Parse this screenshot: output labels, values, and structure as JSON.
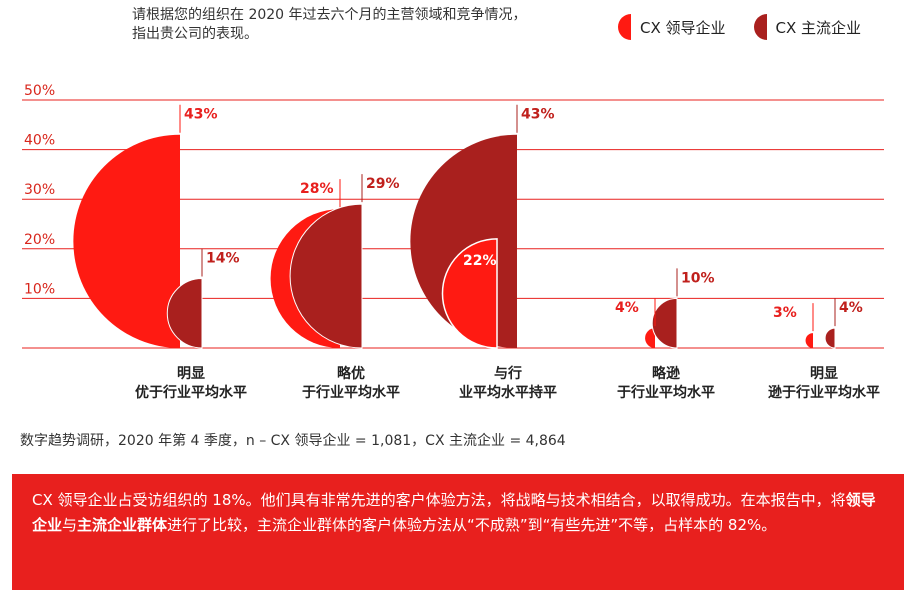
{
  "prompt": {
    "line1": "请根据您的组织在 2020 年过去六个月的主营领域和竞争情况，",
    "line2": "指出贵公司的表现。"
  },
  "colors": {
    "leader": "#ff1a12",
    "mainstream": "#a9201e",
    "grid": "#e8201e",
    "tick": "#d8261c"
  },
  "chart_data": {
    "type": "bar",
    "ylim": [
      0,
      50
    ],
    "yticks": [
      "50%",
      "40%",
      "30%",
      "20%",
      "10%"
    ],
    "ytick_values": [
      50,
      40,
      30,
      20,
      10
    ],
    "grid": true,
    "legend_position": "top-right",
    "categories": [
      [
        "明显",
        "优于行业平均水平"
      ],
      [
        "略优",
        "于行业平均水平"
      ],
      [
        "与行",
        "业平均水平持平"
      ],
      [
        "略逊",
        "于行业平均水平"
      ],
      [
        "明显",
        "逊于行业平均水平"
      ]
    ],
    "series": [
      {
        "name": "CX 领导企业",
        "values": [
          43,
          28,
          22,
          4,
          3
        ],
        "labels": [
          "43%",
          "28%",
          "22%",
          "4%",
          "3%"
        ]
      },
      {
        "name": "CX 主流企业",
        "values": [
          14,
          29,
          43,
          10,
          4
        ],
        "labels": [
          "14%",
          "29%",
          "43%",
          "10%",
          "4%"
        ]
      }
    ]
  },
  "footnote": "数字趋势调研，2020 年第 4 季度，n – CX 领导企业 = 1,081，CX 主流企业 = 4,864",
  "callout": {
    "p1": "CX 领导企业占受访组织的 18%。他们具有非常先进的客户体验方法，将战略与技术相结合，以取得成功。在本报告中，将",
    "b1": "领导企业",
    "p2": "与",
    "b2": "主流企业群体",
    "p3": "进行了比较，主流企业群体的客户体验方法从“不成熟”到“有些先进”不等，占样本的 82%。"
  }
}
